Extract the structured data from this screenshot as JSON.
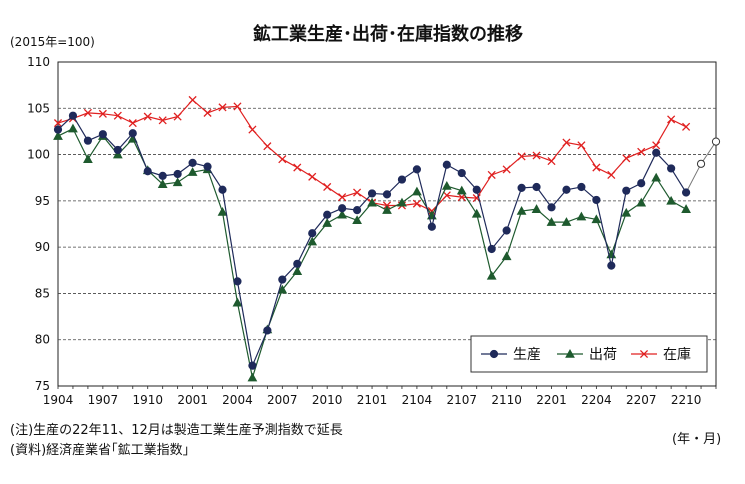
{
  "chart_data": {
    "type": "line",
    "title": "鉱工業生産･出荷･在庫指数の推移",
    "y_unit": "(2015年=100)",
    "x_unit": "(年・月)",
    "ylim": [
      75,
      110
    ],
    "yticks": [
      75,
      80,
      85,
      90,
      95,
      100,
      105,
      110
    ],
    "grid": "horizontal dashed",
    "legend_position": "bottom-right",
    "x_tick_labels": [
      "1904",
      "1907",
      "1910",
      "2001",
      "2004",
      "2007",
      "2010",
      "2101",
      "2104",
      "2107",
      "2110",
      "2201",
      "2204",
      "2207",
      "2210"
    ],
    "categories": [
      "1904",
      "1905",
      "1906",
      "1907",
      "1908",
      "1909",
      "1910",
      "1911",
      "1912",
      "2001",
      "2002",
      "2003",
      "2004",
      "2005",
      "2006",
      "2007",
      "2008",
      "2009",
      "2010",
      "2011",
      "2012",
      "2101",
      "2102",
      "2103",
      "2104",
      "2105",
      "2106",
      "2107",
      "2108",
      "2109",
      "2110",
      "2111",
      "2112",
      "2201",
      "2202",
      "2203",
      "2204",
      "2205",
      "2206",
      "2207",
      "2208",
      "2209",
      "2210",
      "2211",
      "2212"
    ],
    "series": [
      {
        "name": "生産",
        "color": "#1f2a5a",
        "marker": "circle",
        "values": [
          102.7,
          104.2,
          101.5,
          102.2,
          100.5,
          102.3,
          98.2,
          97.7,
          97.9,
          99.1,
          98.7,
          96.2,
          86.3,
          77.2,
          81.0,
          86.5,
          88.2,
          91.5,
          93.5,
          94.2,
          94.0,
          95.8,
          95.7,
          97.3,
          98.4,
          92.2,
          98.9,
          98.0,
          96.2,
          89.8,
          91.8,
          96.4,
          96.5,
          94.3,
          96.2,
          96.5,
          95.1,
          88.0,
          96.1,
          96.9,
          100.2,
          98.5,
          95.9,
          99.0,
          101.4
        ]
      },
      {
        "name": "出荷",
        "color": "#1e5a2e",
        "marker": "triangle",
        "values": [
          102.0,
          102.8,
          99.5,
          102.0,
          100.0,
          101.7,
          98.3,
          96.8,
          97.0,
          98.1,
          98.4,
          93.8,
          84.0,
          75.9,
          81.1,
          85.4,
          87.4,
          90.6,
          92.6,
          93.5,
          92.9,
          94.8,
          94.0,
          94.8,
          96.0,
          93.4,
          96.6,
          96.1,
          93.6,
          86.9,
          89.0,
          93.9,
          94.1,
          92.7,
          92.7,
          93.3,
          93.0,
          89.2,
          93.7,
          94.8,
          97.5,
          95.0,
          94.1,
          null,
          null
        ]
      },
      {
        "name": "在庫",
        "color": "#e02020",
        "marker": "x",
        "values": [
          103.4,
          103.9,
          104.5,
          104.4,
          104.2,
          103.4,
          104.1,
          103.7,
          104.1,
          105.9,
          104.5,
          105.1,
          105.2,
          102.7,
          100.9,
          99.5,
          98.6,
          97.6,
          96.5,
          95.4,
          95.9,
          94.8,
          94.5,
          94.5,
          94.7,
          93.9,
          95.6,
          95.4,
          95.3,
          97.8,
          98.4,
          99.8,
          99.9,
          99.3,
          101.3,
          101.0,
          98.6,
          97.8,
          99.6,
          100.3,
          101.0,
          103.8,
          103.0,
          null,
          null
        ]
      }
    ],
    "forecast_points": {
      "series": "生産",
      "categories": [
        "2211",
        "2212"
      ],
      "style": "hollow circle"
    }
  },
  "notes": {
    "line1": "(注)生産の22年11、12月は製造工業生産予測指数で延長",
    "line2": "(資料)経済産業省｢鉱工業指数｣"
  }
}
